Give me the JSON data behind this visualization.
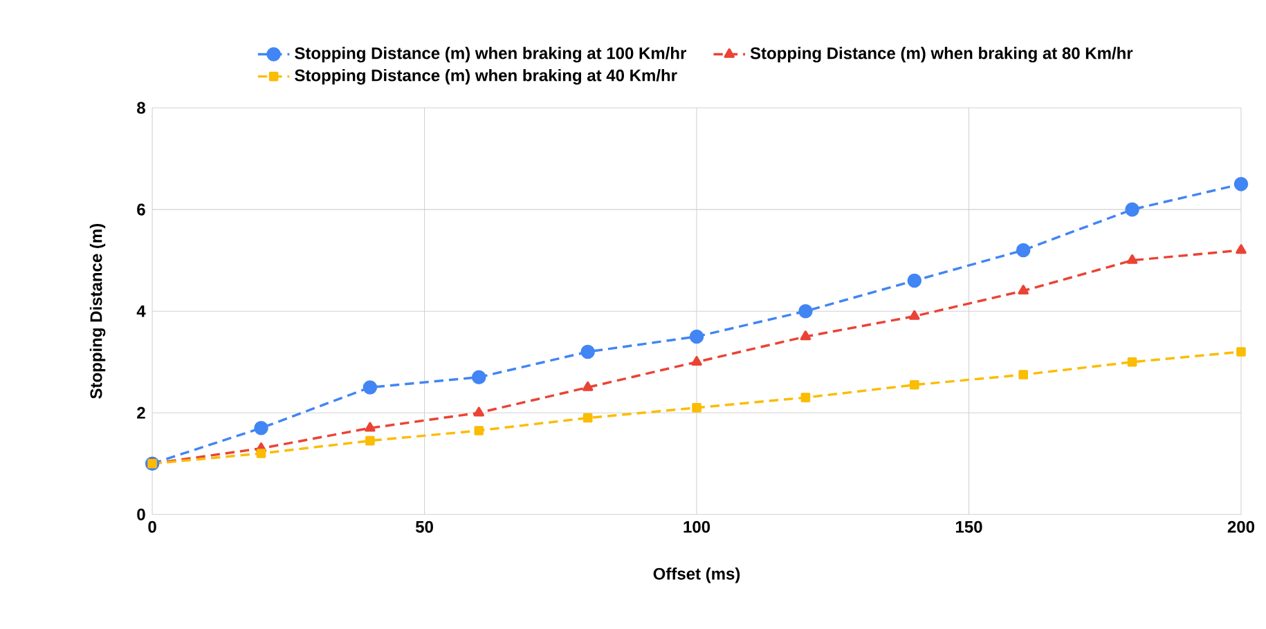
{
  "chart_data": {
    "type": "line",
    "xlabel": "Offset (ms)",
    "ylabel": "Stopping Distance (m)",
    "x": [
      0,
      20,
      40,
      60,
      80,
      100,
      120,
      140,
      160,
      180,
      200
    ],
    "series": [
      {
        "name": "Stopping Distance (m) when braking at 100 Km/hr",
        "color": "#4285f4",
        "marker": "circle",
        "values": [
          1.0,
          1.7,
          2.5,
          2.7,
          3.2,
          3.5,
          4.0,
          4.6,
          5.2,
          6.0,
          6.5
        ]
      },
      {
        "name": "Stopping Distance (m) when braking at 80 Km/hr",
        "color": "#ea4335",
        "marker": "triangle",
        "values": [
          1.0,
          1.3,
          1.7,
          2.0,
          2.5,
          3.0,
          3.5,
          3.9,
          4.4,
          5.0,
          5.2
        ]
      },
      {
        "name": "Stopping Distance (m) when braking at 40 Km/hr",
        "color": "#fbbc04",
        "marker": "square",
        "values": [
          1.0,
          1.2,
          1.45,
          1.65,
          1.9,
          2.1,
          2.3,
          2.55,
          2.75,
          3.0,
          3.2
        ]
      }
    ],
    "xlim": [
      0,
      200
    ],
    "xticks": [
      0,
      50,
      100,
      150,
      200
    ],
    "ylim": [
      0,
      8
    ],
    "yticks": [
      0,
      2,
      4,
      6,
      8
    ],
    "grid": true,
    "legend": "top",
    "line_style": "dashed"
  }
}
